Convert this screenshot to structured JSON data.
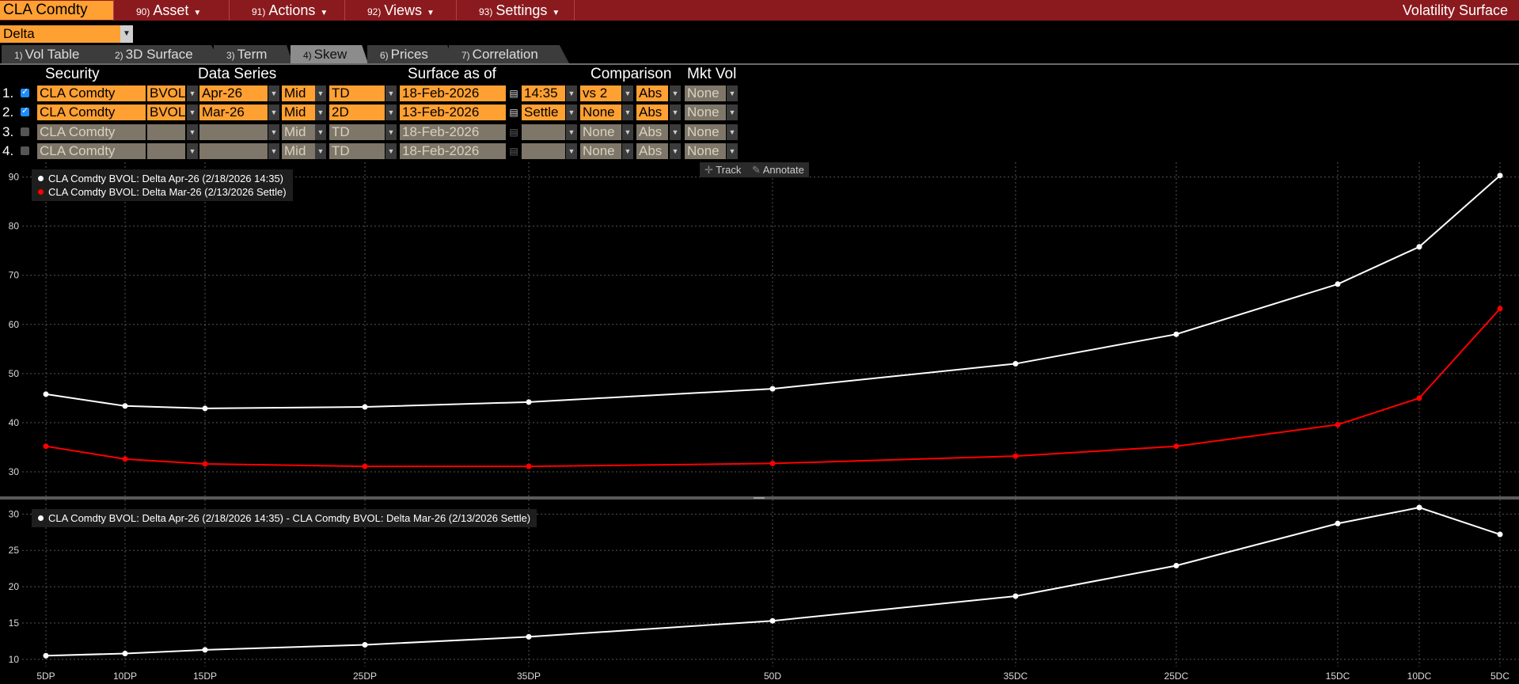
{
  "menu": {
    "ticker": "CLA Comdty",
    "items": [
      {
        "num": "90)",
        "label": "Asset"
      },
      {
        "num": "91)",
        "label": "Actions"
      },
      {
        "num": "92)",
        "label": "Views"
      },
      {
        "num": "93)",
        "label": "Settings"
      }
    ],
    "title": "Volatility Surface"
  },
  "mode_select": "Delta",
  "tabs": [
    {
      "num": "1)",
      "label": "Vol Table"
    },
    {
      "num": "2)",
      "label": "3D Surface"
    },
    {
      "num": "3)",
      "label": "Term"
    },
    {
      "num": "4)",
      "label": "Skew",
      "active": true
    },
    {
      "num": "6)",
      "label": "Prices"
    },
    {
      "num": "7)",
      "label": "Correlation"
    }
  ],
  "table": {
    "headers": {
      "security": "Security",
      "data_series": "Data Series",
      "surface_as_of": "Surface as of",
      "comparison": "Comparison",
      "mkt_vol": "Mkt Vol"
    },
    "rows": [
      {
        "num": "1.",
        "checked": true,
        "security": "CLA Comdty",
        "source": "BVOL",
        "series": "Apr-26",
        "side": "Mid",
        "rel": "TD",
        "date": "18-Feb-2026",
        "time": "14:35",
        "comp": "vs 2",
        "mode": "Abs",
        "mkt": "None"
      },
      {
        "num": "2.",
        "checked": true,
        "security": "CLA Comdty",
        "source": "BVOL",
        "series": "Mar-26",
        "side": "Mid",
        "rel": "2D",
        "date": "13-Feb-2026",
        "time": "Settle",
        "comp": "None",
        "mode": "Abs",
        "mkt": "None"
      },
      {
        "num": "3.",
        "checked": false,
        "security": "CLA Comdty",
        "source": "",
        "series": "",
        "side": "Mid",
        "rel": "TD",
        "date": "18-Feb-2026",
        "time": "",
        "comp": "None",
        "mode": "Abs",
        "mkt": "None"
      },
      {
        "num": "4.",
        "checked": false,
        "security": "CLA Comdty",
        "source": "",
        "series": "",
        "side": "Mid",
        "rel": "TD",
        "date": "18-Feb-2026",
        "time": "",
        "comp": "None",
        "mode": "Abs",
        "mkt": "None"
      }
    ]
  },
  "tools": {
    "track": "Track",
    "annotate": "Annotate"
  },
  "colors": {
    "accent": "#ffa033",
    "menubar": "#8a1a1e",
    "series1": "#ffffff",
    "series2": "#ff0000"
  },
  "chart_data": [
    {
      "type": "line",
      "categories": [
        "5DP",
        "10DP",
        "15DP",
        "25DP",
        "35DP",
        "50D",
        "35DC",
        "25DC",
        "15DC",
        "10DC",
        "5DC"
      ],
      "series": [
        {
          "name": "CLA Comdty BVOL: Delta Apr-26 (2/18/2026 14:35)",
          "color": "#ffffff",
          "values": [
            45.8,
            43.4,
            42.9,
            43.2,
            44.2,
            46.9,
            52.0,
            58.0,
            68.2,
            75.8,
            90.3
          ]
        },
        {
          "name": "CLA Comdty BVOL: Delta Mar-26 (2/13/2026 Settle)",
          "color": "#ff0000",
          "values": [
            35.2,
            32.6,
            31.6,
            31.1,
            31.1,
            31.7,
            33.2,
            35.2,
            39.6,
            45.0,
            63.2
          ]
        }
      ],
      "ylim": [
        25,
        93
      ],
      "yticks": [
        "30",
        "40",
        "50",
        "60",
        "70",
        "80",
        "90"
      ],
      "legend_position": "top-left",
      "grid": true
    },
    {
      "type": "line",
      "categories": [
        "5DP",
        "10DP",
        "15DP",
        "25DP",
        "35DP",
        "50D",
        "35DC",
        "25DC",
        "15DC",
        "10DC",
        "5DC"
      ],
      "series": [
        {
          "name": "CLA Comdty BVOL: Delta Apr-26 (2/18/2026 14:35) - CLA Comdty BVOL: Delta Mar-26 (2/13/2026 Settle)",
          "color": "#ffffff",
          "values": [
            10.5,
            10.8,
            11.3,
            12.0,
            13.1,
            15.3,
            18.7,
            22.9,
            28.7,
            30.9,
            27.2
          ]
        }
      ],
      "ylim": [
        9,
        32
      ],
      "yticks": [
        "10",
        "15",
        "20",
        "25",
        "30"
      ],
      "legend_position": "top-left",
      "grid": true
    }
  ]
}
